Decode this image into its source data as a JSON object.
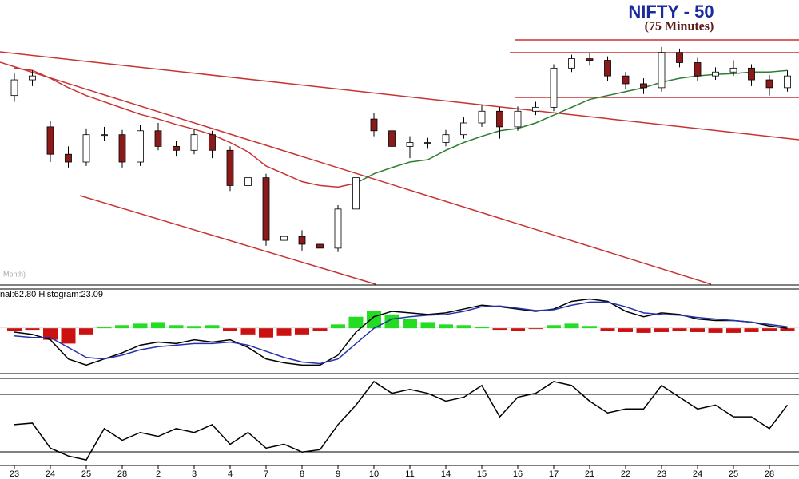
{
  "chart_data": [
    {
      "type": "candlestick",
      "title": "NIFTY - 50",
      "subtitle": "(75 Minutes)",
      "annotation": "Month)",
      "open": [
        240,
        260,
        200,
        165,
        155,
        190,
        190,
        155,
        195,
        175,
        170,
        190,
        170,
        125,
        135,
        55,
        60,
        50,
        45,
        95,
        210,
        195,
        175,
        180,
        180,
        190,
        205,
        220,
        200,
        220,
        225,
        275,
        287,
        285,
        265,
        255,
        250,
        295,
        282,
        265,
        270,
        275,
        260,
        250
      ],
      "high": [
        268,
        272,
        208,
        175,
        198,
        200,
        196,
        202,
        205,
        182,
        198,
        195,
        175,
        145,
        140,
        115,
        68,
        60,
        100,
        142,
        218,
        200,
        188,
        186,
        196,
        212,
        228,
        225,
        226,
        232,
        280,
        292,
        294,
        290,
        270,
        262,
        302,
        300,
        288,
        276,
        285,
        280,
        266,
        272
      ],
      "low": [
        232,
        252,
        155,
        148,
        150,
        182,
        148,
        150,
        170,
        162,
        165,
        160,
        118,
        102,
        48,
        45,
        42,
        35,
        40,
        90,
        188,
        168,
        160,
        172,
        175,
        185,
        200,
        185,
        195,
        215,
        220,
        270,
        278,
        258,
        248,
        242,
        245,
        276,
        258,
        260,
        265,
        252,
        240,
        245
      ],
      "close": [
        260,
        265,
        165,
        155,
        190,
        190,
        155,
        195,
        175,
        170,
        190,
        170,
        125,
        135,
        55,
        60,
        50,
        45,
        95,
        135,
        195,
        175,
        180,
        180,
        190,
        205,
        220,
        200,
        220,
        225,
        275,
        287,
        285,
        265,
        255,
        250,
        295,
        282,
        265,
        270,
        275,
        260,
        250,
        265
      ],
      "up_color": "#ffffff",
      "down_color": "#8b1a1a",
      "lines": [
        {
          "color": "#c83232",
          "values": [
            275,
            272,
            262,
            250,
            240,
            232,
            224,
            216,
            210,
            203,
            197,
            190,
            180,
            168,
            150,
            140,
            130,
            125,
            123,
            128,
            null,
            null,
            null,
            null,
            null,
            null,
            null,
            null,
            null,
            null,
            null,
            null,
            null,
            null,
            null,
            null,
            null,
            null,
            null,
            null,
            null,
            null,
            null,
            null
          ]
        },
        {
          "color": "#2e7d32",
          "values": [
            null,
            null,
            null,
            null,
            null,
            null,
            null,
            null,
            null,
            null,
            null,
            null,
            null,
            null,
            null,
            null,
            null,
            null,
            null,
            128,
            140,
            148,
            155,
            158,
            170,
            180,
            188,
            195,
            198,
            205,
            215,
            225,
            235,
            240,
            245,
            250,
            257,
            262,
            265,
            267,
            268,
            270,
            270,
            272
          ]
        }
      ],
      "ylim": [
        0,
        360
      ]
    },
    {
      "type": "macd",
      "header": "nal:62.80 Histogram:23.09",
      "histogram": [
        -3,
        -2,
        -15,
        -20,
        -8,
        2,
        4,
        6,
        8,
        4,
        3,
        4,
        -3,
        -8,
        -12,
        -10,
        -8,
        -4,
        5,
        15,
        22,
        18,
        12,
        8,
        5,
        4,
        2,
        -2,
        -3,
        -1,
        4,
        6,
        3,
        -3,
        -5,
        -6,
        -5,
        -4,
        -5,
        -6,
        -6,
        -5,
        -4,
        -3
      ],
      "positive_color": "#22dd22",
      "negative_color": "#cc1111",
      "lines": [
        {
          "color": "#000000",
          "values": [
            -5,
            -8,
            -15,
            -40,
            -48,
            -40,
            -32,
            -22,
            -18,
            -20,
            -15,
            -18,
            -15,
            -25,
            -40,
            -45,
            -48,
            -48,
            -35,
            -5,
            15,
            22,
            20,
            18,
            20,
            25,
            30,
            28,
            25,
            22,
            25,
            35,
            38,
            35,
            22,
            15,
            20,
            18,
            12,
            10,
            10,
            8,
            3,
            0
          ]
        },
        {
          "color": "#2233aa",
          "values": [
            -10,
            -12,
            -12,
            -25,
            -38,
            -40,
            -35,
            -28,
            -24,
            -22,
            -20,
            -20,
            -18,
            -22,
            -30,
            -38,
            -44,
            -46,
            -40,
            -20,
            0,
            12,
            15,
            17,
            18,
            22,
            28,
            29,
            26,
            23,
            24,
            30,
            34,
            34,
            28,
            20,
            18,
            17,
            14,
            12,
            10,
            8,
            5,
            2
          ]
        }
      ],
      "ylim": [
        -58,
        50
      ]
    },
    {
      "type": "line",
      "categories": [
        "23",
        null,
        "24",
        null,
        "25",
        null,
        "28",
        null,
        "2",
        null,
        "3",
        null,
        "4",
        null,
        "7",
        null,
        "8",
        null,
        "9",
        null,
        "10",
        null,
        "11",
        null,
        "14",
        null,
        "15",
        null,
        "16",
        null,
        "17",
        null,
        "21",
        null,
        "22",
        null,
        "23",
        null,
        "24",
        null,
        "25",
        null,
        "28",
        null
      ],
      "values": [
        50,
        52,
        20,
        10,
        5,
        45,
        30,
        40,
        35,
        45,
        40,
        50,
        25,
        40,
        20,
        25,
        15,
        18,
        50,
        75,
        105,
        90,
        95,
        90,
        80,
        85,
        100,
        60,
        85,
        90,
        105,
        100,
        80,
        65,
        70,
        70,
        100,
        85,
        70,
        75,
        60,
        60,
        45,
        75
      ],
      "color": "#000000",
      "ylim": [
        0,
        108
      ]
    }
  ]
}
